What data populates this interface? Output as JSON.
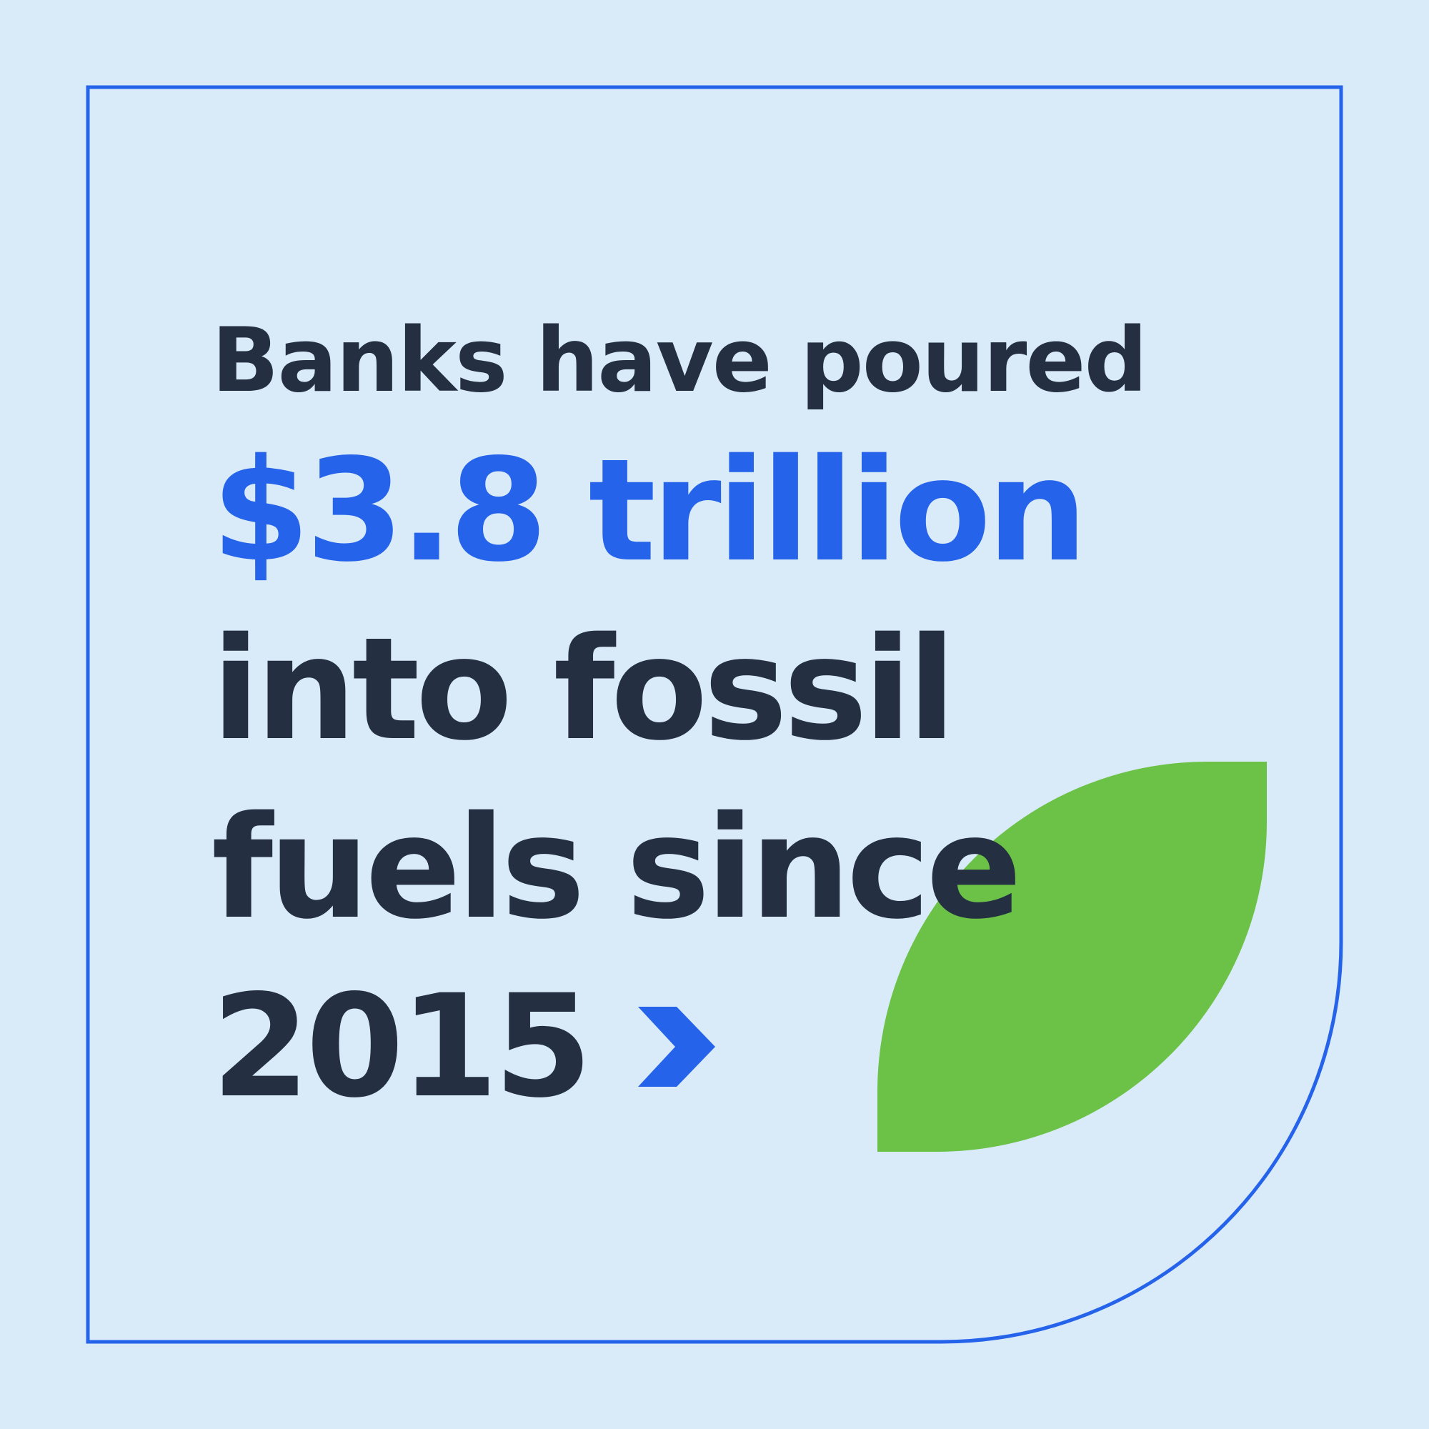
{
  "headline": {
    "line1": "Banks have poured",
    "line2": "$3.8 trillion",
    "line3": "into fossil",
    "line4": "fuels since",
    "line5": "2015"
  },
  "colors": {
    "background": "#d9eaf9",
    "text": "#252f42",
    "accent": "#2563eb",
    "leaf": "#6bc247",
    "frame": "#2563eb"
  },
  "icons": {
    "arrow": "chevron-right-icon",
    "decoration": "leaf-shape"
  }
}
